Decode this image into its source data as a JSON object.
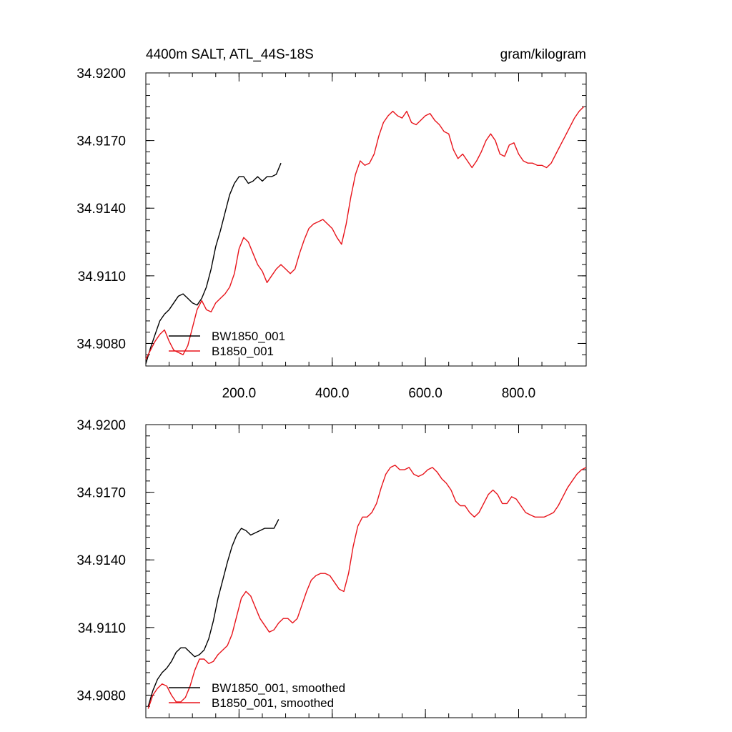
{
  "header": {
    "title": "4400m SALT, ATL_44S-18S",
    "units": "gram/kilogram"
  },
  "colors": {
    "bw": "#000000",
    "b": "#e8141b",
    "axis": "#000000"
  },
  "chart_data": [
    {
      "type": "line",
      "panel": "raw",
      "xlim": [
        0,
        945
      ],
      "ylim": [
        34.907,
        34.92
      ],
      "x_ticks": [
        200,
        400,
        600,
        800
      ],
      "x_tick_labels": [
        "200.0",
        "400.0",
        "600.0",
        "800.0"
      ],
      "y_ticks": [
        34.908,
        34.911,
        34.914,
        34.917,
        34.92
      ],
      "y_tick_labels": [
        "34.9080",
        "34.9110",
        "34.9140",
        "34.9170",
        "34.9200"
      ],
      "legend_position": "bottom-left",
      "series": [
        {
          "name": "BW1850_001",
          "color": "#000000",
          "x": [
            0,
            10,
            20,
            30,
            40,
            50,
            60,
            70,
            80,
            90,
            100,
            110,
            120,
            130,
            140,
            150,
            160,
            170,
            180,
            190,
            200,
            210,
            220,
            230,
            240,
            250,
            260,
            270,
            280,
            290
          ],
          "y": [
            34.9071,
            34.9078,
            34.9084,
            34.909,
            34.9093,
            34.9095,
            34.9098,
            34.9101,
            34.9102,
            34.91,
            34.9098,
            34.9097,
            34.91,
            34.9105,
            34.9113,
            34.9123,
            34.913,
            34.9138,
            34.9146,
            34.9151,
            34.9154,
            34.9154,
            34.9151,
            34.9152,
            34.9154,
            34.9152,
            34.9154,
            34.9154,
            34.9155,
            34.916
          ]
        },
        {
          "name": "B1850_001",
          "color": "#e8141b",
          "x": [
            0,
            10,
            20,
            30,
            40,
            50,
            60,
            70,
            80,
            90,
            100,
            110,
            120,
            130,
            140,
            150,
            160,
            170,
            180,
            190,
            200,
            210,
            220,
            230,
            240,
            250,
            260,
            270,
            280,
            290,
            300,
            310,
            320,
            330,
            340,
            350,
            360,
            370,
            380,
            390,
            400,
            410,
            420,
            430,
            440,
            450,
            460,
            470,
            480,
            490,
            500,
            510,
            520,
            530,
            540,
            550,
            560,
            570,
            580,
            590,
            600,
            610,
            620,
            630,
            640,
            650,
            660,
            670,
            680,
            690,
            700,
            710,
            720,
            730,
            740,
            750,
            760,
            770,
            780,
            790,
            800,
            810,
            820,
            830,
            840,
            850,
            860,
            870,
            880,
            890,
            900,
            910,
            920,
            930,
            940
          ],
          "y": [
            34.9073,
            34.9077,
            34.9081,
            34.9084,
            34.9086,
            34.9081,
            34.9077,
            34.9076,
            34.9075,
            34.9079,
            34.9087,
            34.9095,
            34.9099,
            34.9095,
            34.9094,
            34.9098,
            34.91,
            34.9102,
            34.9105,
            34.9111,
            34.9122,
            34.9127,
            34.9125,
            34.912,
            34.9115,
            34.9112,
            34.9107,
            34.911,
            34.9113,
            34.9115,
            34.9113,
            34.9111,
            34.9113,
            34.912,
            34.9126,
            34.9131,
            34.9133,
            34.9134,
            34.9135,
            34.9133,
            34.9131,
            34.9127,
            34.9124,
            34.9133,
            34.9145,
            34.9155,
            34.9161,
            34.9159,
            34.916,
            34.9164,
            34.9172,
            34.9178,
            34.9181,
            34.9183,
            34.9181,
            34.918,
            34.9183,
            34.9178,
            34.9177,
            34.9179,
            34.9181,
            34.9182,
            34.9179,
            34.9177,
            34.9174,
            34.9173,
            34.9166,
            34.9162,
            34.9164,
            34.9161,
            34.9158,
            34.9161,
            34.9165,
            34.917,
            34.9173,
            34.917,
            34.9164,
            34.9163,
            34.9168,
            34.9169,
            34.9164,
            34.9161,
            34.916,
            34.916,
            34.9159,
            34.9159,
            34.9158,
            34.916,
            34.9164,
            34.9168,
            34.9172,
            34.9176,
            34.918,
            34.9183,
            34.9185
          ]
        }
      ]
    },
    {
      "type": "line",
      "panel": "smoothed",
      "xlim": [
        0,
        945
      ],
      "ylim": [
        34.907,
        34.92
      ],
      "x_ticks": [
        200,
        400,
        600,
        800
      ],
      "y_ticks": [
        34.908,
        34.911,
        34.914,
        34.917,
        34.92
      ],
      "y_tick_labels": [
        "34.9080",
        "34.9110",
        "34.9140",
        "34.9170",
        "34.9200"
      ],
      "legend_position": "bottom-left",
      "series": [
        {
          "name": "BW1850_001, smoothed",
          "color": "#000000",
          "x": [
            5,
            15,
            25,
            35,
            45,
            55,
            65,
            75,
            85,
            95,
            105,
            115,
            125,
            135,
            145,
            155,
            165,
            175,
            185,
            195,
            205,
            215,
            225,
            235,
            245,
            255,
            265,
            275,
            285
          ],
          "y": [
            34.9075,
            34.9082,
            34.9087,
            34.909,
            34.9092,
            34.9095,
            34.9099,
            34.9101,
            34.9101,
            34.9099,
            34.9097,
            34.9098,
            34.91,
            34.9105,
            34.9113,
            34.9123,
            34.9131,
            34.9139,
            34.9146,
            34.9151,
            34.9154,
            34.9153,
            34.9151,
            34.9152,
            34.9153,
            34.9154,
            34.9154,
            34.9154,
            34.9158
          ]
        },
        {
          "name": "B1850_001, smoothed",
          "color": "#e8141b",
          "x": [
            5,
            15,
            25,
            35,
            45,
            55,
            65,
            75,
            85,
            95,
            105,
            115,
            125,
            135,
            145,
            155,
            165,
            175,
            185,
            195,
            205,
            215,
            225,
            235,
            245,
            255,
            265,
            275,
            285,
            295,
            305,
            315,
            325,
            335,
            345,
            355,
            365,
            375,
            385,
            395,
            405,
            415,
            425,
            435,
            445,
            455,
            465,
            475,
            485,
            495,
            505,
            515,
            525,
            535,
            545,
            555,
            565,
            575,
            585,
            595,
            605,
            615,
            625,
            635,
            645,
            655,
            665,
            675,
            685,
            695,
            705,
            715,
            725,
            735,
            745,
            755,
            765,
            775,
            785,
            795,
            805,
            815,
            825,
            835,
            845,
            855,
            865,
            875,
            885,
            895,
            905,
            915,
            925,
            935,
            945
          ],
          "y": [
            34.9074,
            34.908,
            34.9083,
            34.9085,
            34.9084,
            34.908,
            34.9077,
            34.9077,
            34.9079,
            34.9084,
            34.9091,
            34.9096,
            34.9096,
            34.9094,
            34.9095,
            34.9098,
            34.91,
            34.9102,
            34.9107,
            34.9115,
            34.9123,
            34.9126,
            34.9124,
            34.9119,
            34.9114,
            34.9111,
            34.9108,
            34.9109,
            34.9112,
            34.9114,
            34.9114,
            34.9112,
            34.9114,
            34.912,
            34.9126,
            34.9131,
            34.9133,
            34.9134,
            34.9134,
            34.9133,
            34.913,
            34.9127,
            34.9126,
            34.9134,
            34.9146,
            34.9155,
            34.9159,
            34.9159,
            34.9161,
            34.9165,
            34.9172,
            34.9178,
            34.9181,
            34.9182,
            34.918,
            34.918,
            34.9181,
            34.9178,
            34.9177,
            34.9178,
            34.918,
            34.9181,
            34.9179,
            34.9176,
            34.9174,
            34.9171,
            34.9166,
            34.9164,
            34.9164,
            34.9161,
            34.9159,
            34.9161,
            34.9165,
            34.9169,
            34.9171,
            34.9169,
            34.9165,
            34.9165,
            34.9168,
            34.9167,
            34.9164,
            34.9161,
            34.916,
            34.9159,
            34.9159,
            34.9159,
            34.916,
            34.9161,
            34.9164,
            34.9168,
            34.9172,
            34.9175,
            34.9178,
            34.918,
            34.9181
          ]
        }
      ]
    }
  ]
}
